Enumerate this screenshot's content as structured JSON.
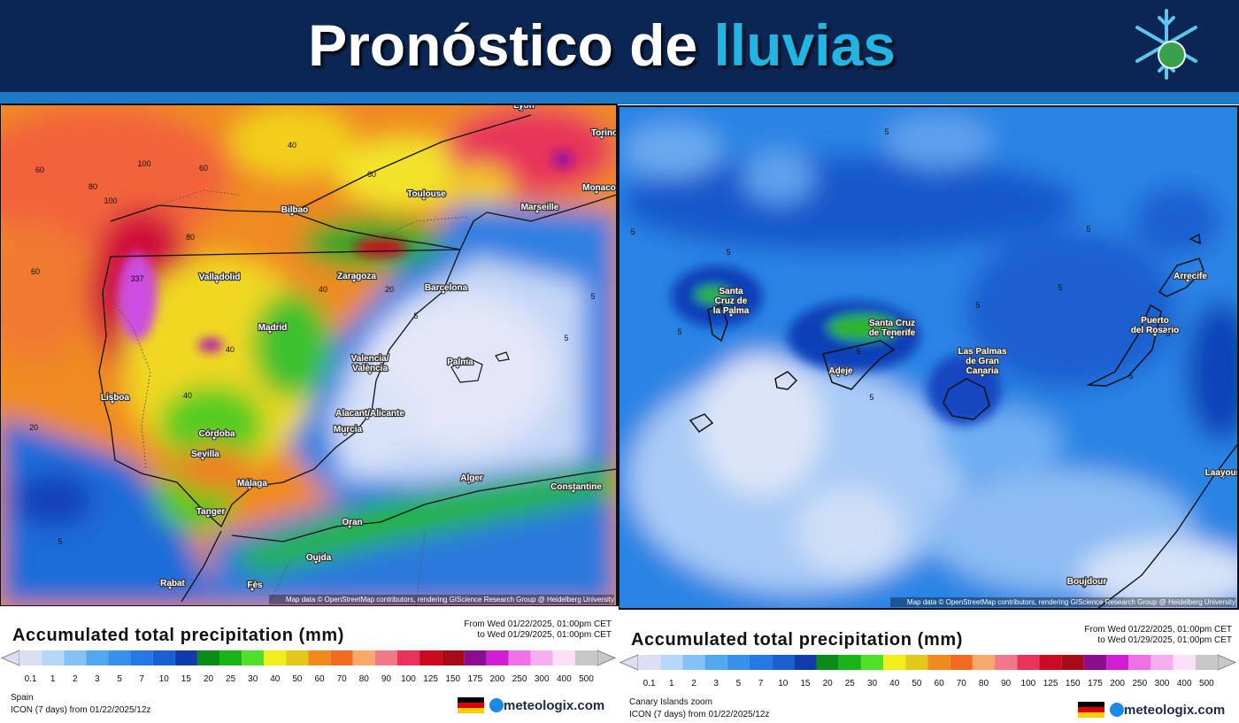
{
  "header": {
    "title_main": "Pronóstico de",
    "title_accent": "lluvias"
  },
  "legend": {
    "title": "Accumulated total precipitation (mm)",
    "values": [
      0.1,
      1,
      2,
      3,
      5,
      7,
      10,
      15,
      20,
      25,
      30,
      40,
      50,
      60,
      70,
      80,
      90,
      100,
      125,
      150,
      175,
      200,
      250,
      300,
      400,
      500
    ],
    "colors": [
      "#dcdff4",
      "#b6d8f8",
      "#84c2f5",
      "#52a8ef",
      "#3790ea",
      "#2679e3",
      "#1a5fd2",
      "#0f3caa",
      "#0a8a16",
      "#18b418",
      "#4fe02a",
      "#f2ee1c",
      "#e2c81a",
      "#f08a1e",
      "#f06a22",
      "#f7a86a",
      "#f07888",
      "#e8345a",
      "#cc0a22",
      "#a80a1a",
      "#8a0e8e",
      "#d21ed2",
      "#f070e8",
      "#f7aef0",
      "#fbe0f8",
      "#c8c8c8"
    ]
  },
  "panels": [
    {
      "region": "Spain",
      "model": "ICON (7 days) from 01/22/2025/12z",
      "period_from": "From Wed 01/22/2025, 01:00pm CET",
      "period_to": "to Wed 01/29/2025, 01:00pm CET",
      "attribution": "Map data © OpenStreetMap contributors, rendering GIScience Research Group @ Heidelberg University",
      "brand": "meteologix.com",
      "places": [
        {
          "lines": [
            "Lyon"
          ]
        },
        {
          "lines": [
            "Torino"
          ]
        },
        {
          "lines": [
            "Monaco"
          ]
        },
        {
          "lines": [
            "Toulouse"
          ]
        },
        {
          "lines": [
            "Marseille"
          ]
        },
        {
          "lines": [
            "Bilbao"
          ]
        },
        {
          "lines": [
            "Zaragoza"
          ]
        },
        {
          "lines": [
            "Barcelona"
          ]
        },
        {
          "lines": [
            "Valladolid"
          ]
        },
        {
          "lines": [
            "Madrid"
          ]
        },
        {
          "lines": [
            "Valencia/",
            "València"
          ]
        },
        {
          "lines": [
            "Palma"
          ]
        },
        {
          "lines": [
            "Alacant/Alicante"
          ]
        },
        {
          "lines": [
            "Murcia"
          ]
        },
        {
          "lines": [
            "Lisboa"
          ]
        },
        {
          "lines": [
            "Córdoba"
          ]
        },
        {
          "lines": [
            "Sevilla"
          ]
        },
        {
          "lines": [
            "Málaga"
          ]
        },
        {
          "lines": [
            "Tanger"
          ]
        },
        {
          "lines": [
            "Alger"
          ]
        },
        {
          "lines": [
            "Constantine"
          ]
        },
        {
          "lines": [
            "Oran"
          ]
        },
        {
          "lines": [
            "Oujda"
          ]
        },
        {
          "lines": [
            "Rabat"
          ]
        },
        {
          "lines": [
            "Fès"
          ]
        }
      ],
      "contour_labels": [
        60,
        100,
        80,
        60,
        40,
        60,
        80,
        100,
        60,
        40,
        337,
        40,
        20,
        40,
        20,
        5,
        5,
        5,
        5
      ]
    },
    {
      "region": "Canary Islands zoom",
      "model": "ICON (7 days) from 01/22/2025/12z",
      "period_from": "From Wed 01/22/2025, 01:00pm CET",
      "period_to": "to Wed 01/29/2025, 01:00pm CET",
      "attribution": "Map data © OpenStreetMap contributors, rendering GIScience Research Group @ Heidelberg University",
      "brand": "meteologix.com",
      "places": [
        {
          "lines": [
            "Santa",
            "Cruz de",
            "la Palma"
          ]
        },
        {
          "lines": [
            "Santa Cruz",
            "de Tenerife"
          ]
        },
        {
          "lines": [
            "Adeje"
          ]
        },
        {
          "lines": [
            "Las Palmas",
            "de Gran",
            "Canaria"
          ]
        },
        {
          "lines": [
            "Puerto",
            "del Rosario"
          ]
        },
        {
          "lines": [
            "Arrecife"
          ]
        },
        {
          "lines": [
            "Boujdour"
          ]
        },
        {
          "lines": [
            "Laayoune"
          ]
        }
      ],
      "contour_labels": [
        5,
        5,
        5,
        5,
        5,
        5,
        5,
        5,
        5,
        5,
        5
      ]
    }
  ]
}
